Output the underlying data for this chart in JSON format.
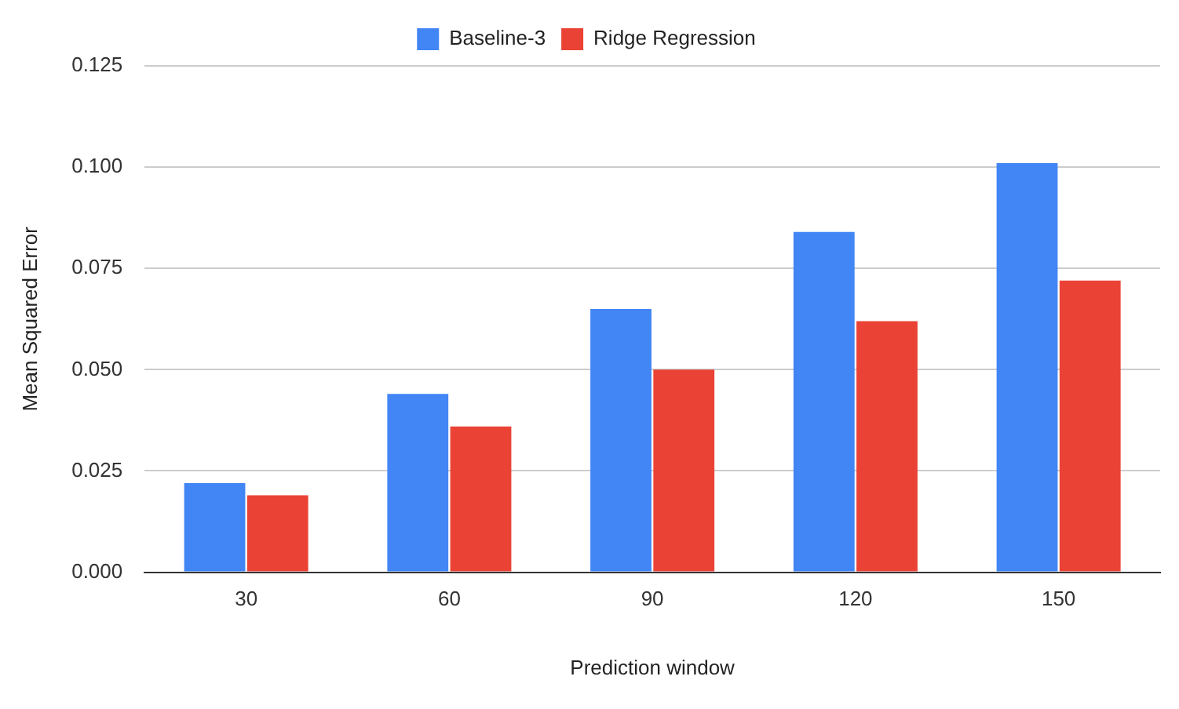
{
  "chart_data": {
    "type": "bar",
    "xlabel": "Prediction window",
    "ylabel": "Mean Squared Error",
    "categories": [
      "30",
      "60",
      "90",
      "120",
      "150"
    ],
    "series": [
      {
        "name": "Baseline-3",
        "color": "#4285f4",
        "values": [
          0.022,
          0.044,
          0.065,
          0.084,
          0.101
        ]
      },
      {
        "name": "Ridge Regression",
        "color": "#ea4335",
        "values": [
          0.019,
          0.036,
          0.05,
          0.062,
          0.072
        ]
      }
    ],
    "ylim": [
      0,
      0.125
    ],
    "yticks": [
      {
        "value": 0,
        "label": "0.000"
      },
      0.025,
      {
        "value": 0.05,
        "label": "0.050"
      },
      0.075,
      {
        "value": 0.1,
        "label": "0.100"
      },
      0.125
    ],
    "grid": "y",
    "legend": "top"
  }
}
